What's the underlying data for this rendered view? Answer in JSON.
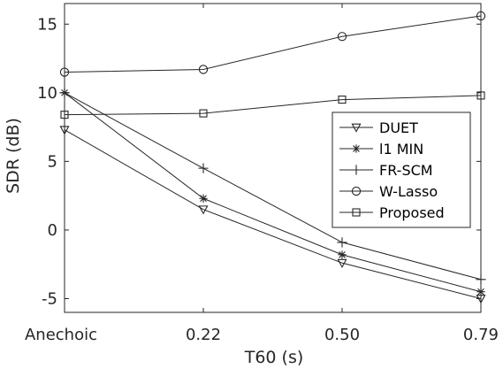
{
  "chart_data": {
    "type": "line",
    "title": "",
    "xlabel": "T60 (s)",
    "ylabel": "SDR (dB)",
    "categories": [
      "Anechoic",
      "0.22",
      "0.50",
      "0.79"
    ],
    "ylim": [
      -6,
      16.5
    ],
    "yticks": [
      -5,
      0,
      5,
      10,
      15
    ],
    "ytick_labels": [
      "-5",
      "0",
      "5",
      "10",
      "15"
    ],
    "grid": false,
    "legend_position": "right",
    "colors": {
      "line": "#262626",
      "axes": "#262626",
      "background": "#ffffff"
    },
    "series": [
      {
        "name": "DUET",
        "marker": "triangle-down",
        "values": [
          7.3,
          1.5,
          -2.4,
          -5.0
        ]
      },
      {
        "name": "l1 MIN",
        "marker": "asterisk",
        "values": [
          10.0,
          2.3,
          -1.8,
          -4.5
        ]
      },
      {
        "name": "FR-SCM",
        "marker": "plus",
        "values": [
          10.0,
          4.5,
          -0.9,
          -3.6
        ]
      },
      {
        "name": "W-Lasso",
        "marker": "circle",
        "values": [
          11.5,
          11.7,
          14.1,
          15.6
        ]
      },
      {
        "name": "Proposed",
        "marker": "square",
        "values": [
          8.4,
          8.5,
          9.5,
          9.8
        ]
      }
    ]
  }
}
